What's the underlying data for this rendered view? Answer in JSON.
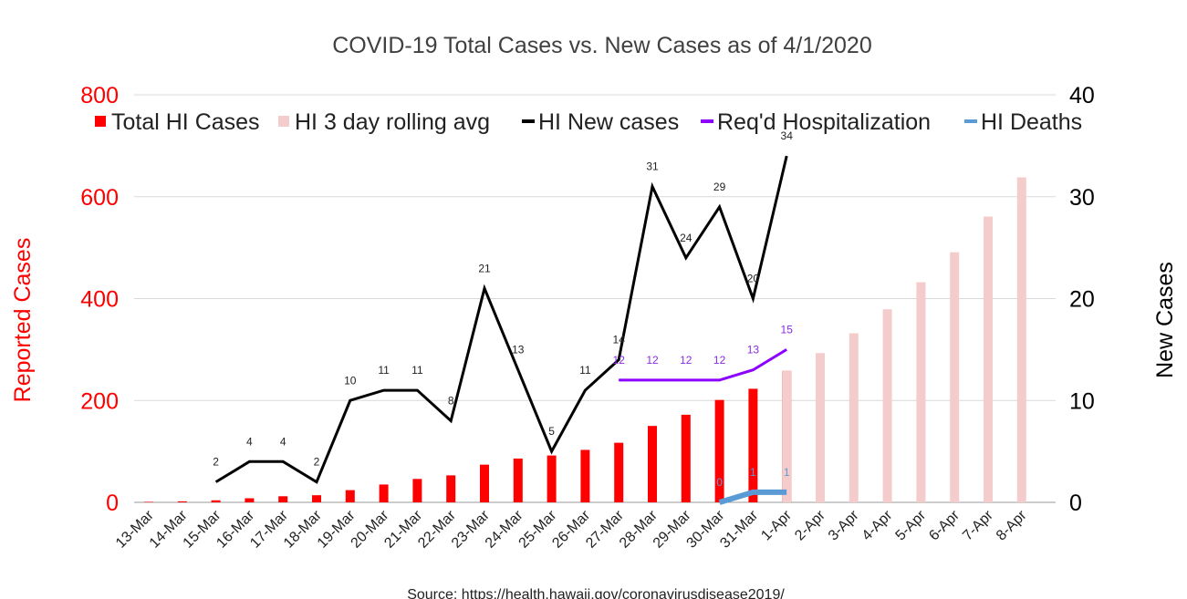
{
  "chart_data": {
    "type": "bar",
    "title": "COVID-19 Total Cases vs. New Cases as of 4/1/2020",
    "ylabel_left": "Reported Cases",
    "ylabel_right": "New Cases",
    "ylim_left": [
      0,
      800
    ],
    "ylim_right": [
      0,
      40
    ],
    "yticks_left": [
      "0",
      "200",
      "400",
      "600",
      "800"
    ],
    "yticks_right": [
      "0",
      "10",
      "20",
      "30",
      "40"
    ],
    "grid": true,
    "legend_position": "top",
    "categories": [
      "13-Mar",
      "14-Mar",
      "15-Mar",
      "16-Mar",
      "17-Mar",
      "18-Mar",
      "19-Mar",
      "20-Mar",
      "21-Mar",
      "22-Mar",
      "23-Mar",
      "24-Mar",
      "25-Mar",
      "26-Mar",
      "27-Mar",
      "28-Mar",
      "29-Mar",
      "30-Mar",
      "31-Mar",
      "1-Apr",
      "2-Apr",
      "3-Apr",
      "4-Apr",
      "5-Apr",
      "6-Apr",
      "7-Apr",
      "8-Apr"
    ],
    "series": [
      {
        "name": "Total HI Cases",
        "type": "bar",
        "axis": "left",
        "color": "#ff0000",
        "values": [
          1,
          2,
          4,
          8,
          12,
          14,
          24,
          35,
          46,
          53,
          74,
          86,
          92,
          103,
          117,
          150,
          172,
          201,
          223,
          258,
          null,
          null,
          null,
          null,
          null,
          null,
          null
        ]
      },
      {
        "name": "HI 3 day rolling avg",
        "type": "bar",
        "axis": "left",
        "color": "#f4cccc",
        "values": [
          null,
          null,
          null,
          null,
          null,
          null,
          null,
          null,
          null,
          null,
          null,
          null,
          null,
          null,
          null,
          null,
          null,
          null,
          null,
          258,
          293,
          332,
          379,
          432,
          491,
          561,
          638
        ]
      },
      {
        "name": "HI New cases",
        "type": "line",
        "axis": "right",
        "color": "#000000",
        "values": [
          null,
          null,
          2,
          4,
          4,
          2,
          10,
          11,
          11,
          8,
          21,
          13,
          5,
          11,
          14,
          31,
          24,
          29,
          20,
          34,
          null,
          null,
          null,
          null,
          null,
          null,
          null
        ]
      },
      {
        "name": "Req'd Hospitalization",
        "type": "line",
        "axis": "right",
        "color": "#8b00ff",
        "values": [
          null,
          null,
          null,
          null,
          null,
          null,
          null,
          null,
          null,
          null,
          null,
          null,
          null,
          null,
          12,
          12,
          12,
          12,
          13,
          15,
          null,
          null,
          null,
          null,
          null,
          null,
          null
        ]
      },
      {
        "name": "HI Deaths",
        "type": "line",
        "axis": "right",
        "color": "#5b9bd5",
        "values": [
          null,
          null,
          null,
          null,
          null,
          null,
          null,
          null,
          null,
          null,
          null,
          null,
          null,
          null,
          null,
          null,
          null,
          0,
          1,
          1,
          null,
          null,
          null,
          null,
          null,
          null,
          null
        ]
      }
    ],
    "source": "Source: https://health.hawaii.gov/coronavirusdisease2019/"
  }
}
